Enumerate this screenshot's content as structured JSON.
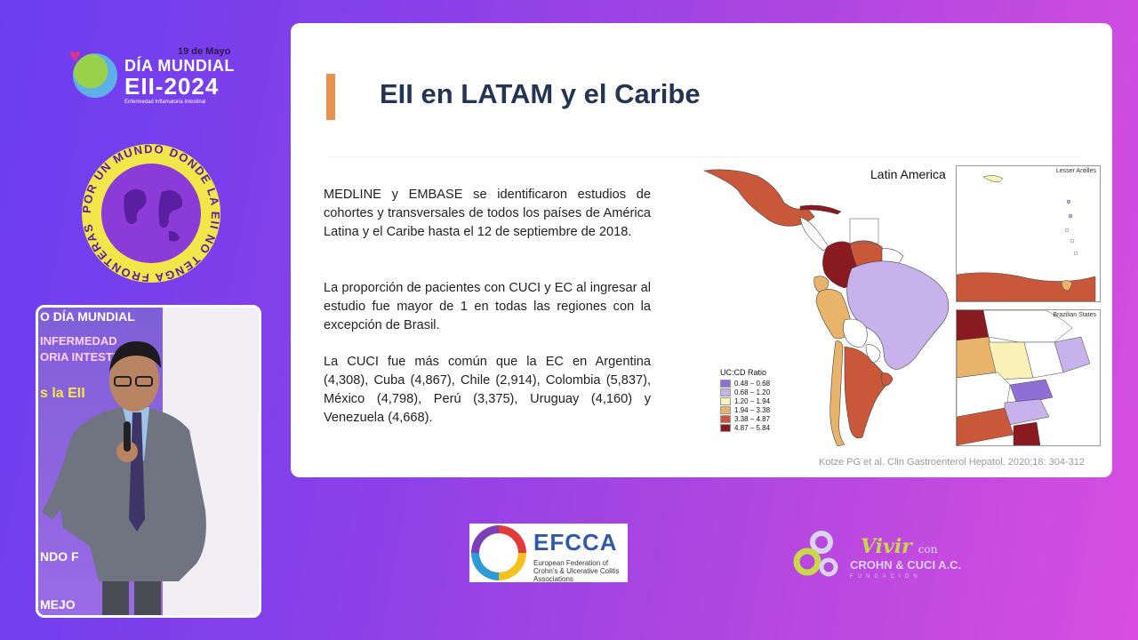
{
  "event_logo": {
    "date": "19 de Mayo",
    "line1": "DÍA MUNDIAL",
    "line2": "EII-2024",
    "line3": "Enfermedad Inflamatoria Intestinal"
  },
  "badge": {
    "text": "POR UN MUNDO DONDE LA EII NO TENGA FRONTERAS"
  },
  "video": {
    "backdrop_lines": [
      "O DÍA MUNDIAL",
      "INFERMEDAD",
      "ORIA INTESTINAL",
      "s la EII",
      "NDO F",
      "MEJO"
    ]
  },
  "slide": {
    "title": "EII en LATAM y el Caribe",
    "paragraphs": [
      "MEDLINE y EMBASE se identificaron estudios de cohortes y transversales de todos los países de América Latina y el Caribe hasta el 12 de septiembre de 2018.",
      "La proporción de pacientes con CUCI y EC al ingresar al estudio fue mayor de 1 en todas las regiones con la excepción de Brasil.",
      "La CUCI fue más común que la EC en Argentina (4,308), Cuba (4,867), Chile (2,914), Colombia (5,837), México (4,798), Perú (3,375), Uruguay (4,160) y Venezuela (4,668)."
    ],
    "map_title": "Latin America",
    "inset_lesser": "Lesser Antilles",
    "inset_brazil": "Brazilian States",
    "legend_title": "UC:CD Ratio",
    "legend": [
      {
        "label": "0.48 – 0.68",
        "color": "#8e6fd6"
      },
      {
        "label": "0.68 – 1.20",
        "color": "#c8b2ec"
      },
      {
        "label": "1.20 – 1.94",
        "color": "#f8f2b8"
      },
      {
        "label": "1.94 – 3.38",
        "color": "#e8b46c"
      },
      {
        "label": "3.38 – 4.87",
        "color": "#c9583a"
      },
      {
        "label": "4.87 – 5.84",
        "color": "#8a1a22"
      }
    ],
    "citation": "Kotze PG et al. Clin Gastroenterol Hepatol. 2020;18: 304-312"
  },
  "sponsors": {
    "efcca_name": "EFCCA",
    "efcca_sub": "European Federation of Crohn's & Ulcerative Colitis Associations",
    "vivir_main": "Vivir",
    "vivir_con": "con",
    "vivir_line2": "CROHN & CUCI A.C.",
    "vivir_line3": "FUNDACIÓN"
  }
}
